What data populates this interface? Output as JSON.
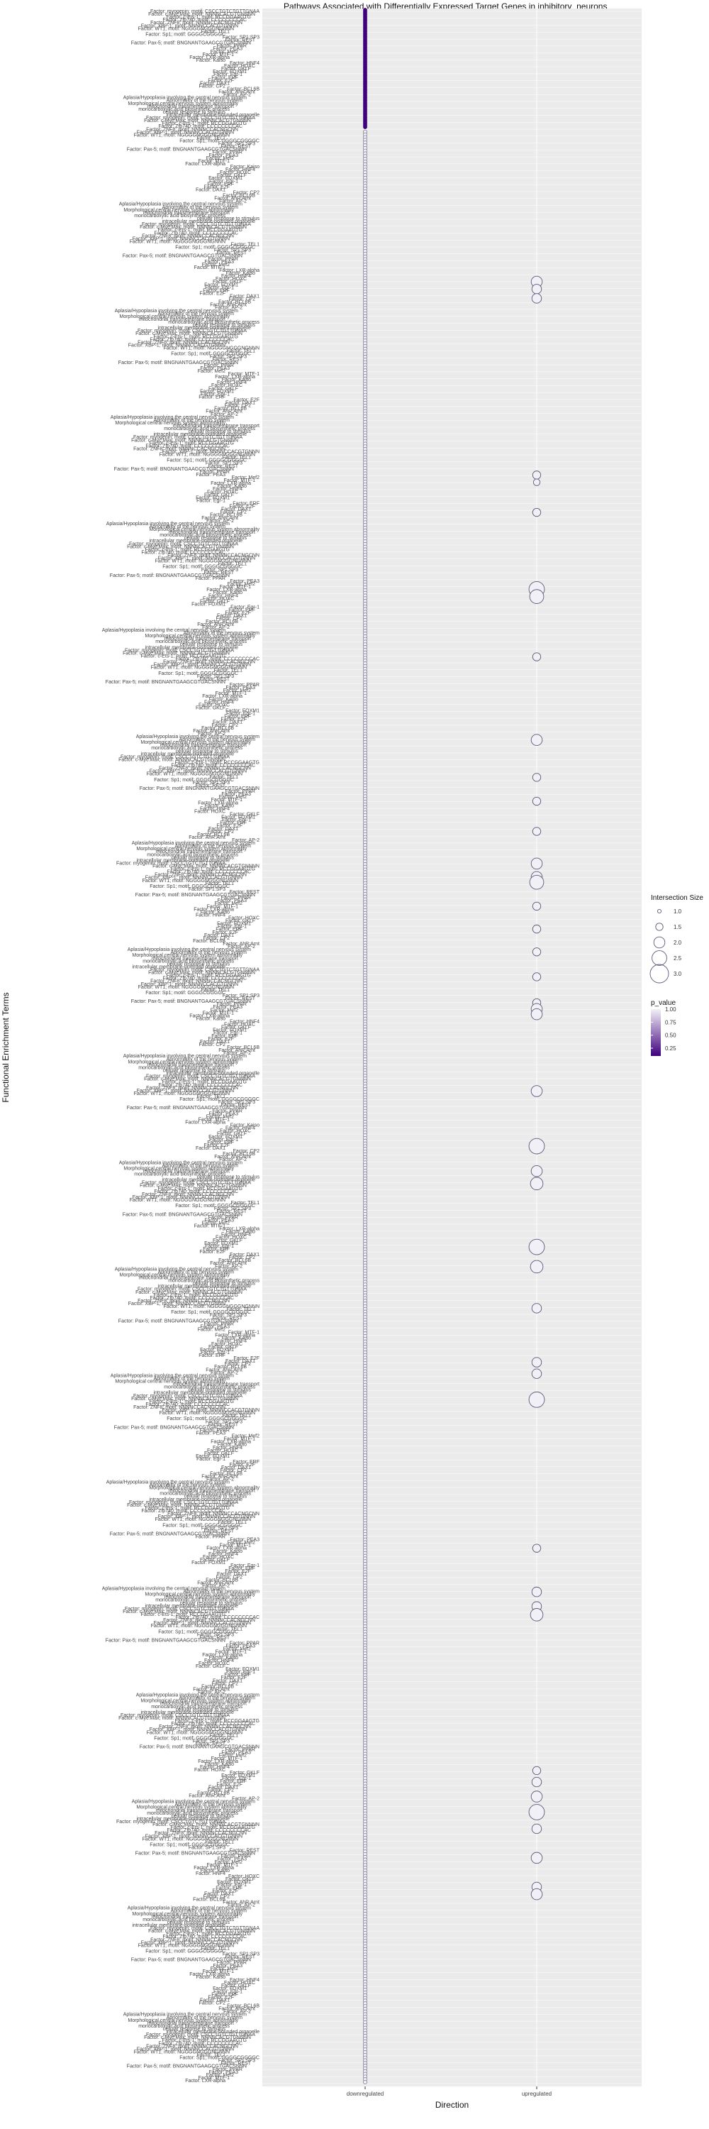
{
  "chart_data": {
    "type": "scatter",
    "title": "Pathways Associated with Differentially Expressed Target Genes in inhibitory_neurons",
    "xlabel": "Direction",
    "ylabel": "Functional Enrichment Terms",
    "x_categories": [
      "downregulated",
      "upregulated"
    ],
    "y_term_labels_sample": [
      "Factor: myogenin; motif: CSCCTGTCTGTTGNAA",
      "Factor: c-Myc:Max; motif: NNNNCACGTGNNNN",
      "Factor: c-Ets-1; motif: RCCGGAAGTG",
      "Factor: Zfp740; motif: CCCCCCCCAC",
      "Factor: ZNF8; motif: NNNNCCACNGCNN",
      "Factor: XBP-1; motif: NNNNCCACGTGNNN",
      "Factor: WT1; motif: NGGGGNGGGNGNNN",
      "Factor: TEL1",
      "Factor: Sp1; motif: GGGGCGGGGC",
      "Factor: SP1:SP3",
      "Factor: REST",
      "Factor: Pax-5; motif: BNGNANTGAAGCGTGACSNNN",
      "Factor: PPAR",
      "Factor: PEA3",
      "Factor: Mef2",
      "Factor: MTF-1",
      "Factor: LXR-alpha",
      "Factor: Kaiso",
      "Factor: HNF4",
      "Factor: HOXC",
      "Factor: GKLF",
      "Factor: FOXM1",
      "Factor: Egr-1",
      "Factor: ERF",
      "Factor: E2F",
      "Factor: DAX1",
      "Factor: CP2",
      "Factor: BCL6B",
      "Factor: AhR:Arnt",
      "Factor: AP-2",
      "Aplasia/Hypoplasia involving the central nervous system",
      "Abnormality of the nervous system",
      "Morphological central nervous system abnormality",
      "mitochondrial transmembrane transport",
      "monocarboxylic acid biosynthetic process",
      "cellular response to stimulus",
      "intracellular membrane-bounded organelle"
    ],
    "down_dense_band": {
      "start_fraction": 0.0,
      "end_fraction": 0.03,
      "p_value": 0.1,
      "size": 1.0
    },
    "down_points": {
      "count": 240,
      "size": 1.0,
      "p_value": 1.0
    },
    "up_points": [
      {
        "pos": 0.1315,
        "size": 2.0,
        "p_value": 1.0
      },
      {
        "pos": 0.135,
        "size": 1.8,
        "p_value": 1.0
      },
      {
        "pos": 0.1395,
        "size": 1.8,
        "p_value": 1.0
      },
      {
        "pos": 0.2245,
        "size": 1.6,
        "p_value": 1.0
      },
      {
        "pos": 0.228,
        "size": 1.4,
        "p_value": 1.0
      },
      {
        "pos": 0.2425,
        "size": 1.6,
        "p_value": 1.0
      },
      {
        "pos": 0.2795,
        "size": 2.6,
        "p_value": 1.0
      },
      {
        "pos": 0.283,
        "size": 2.4,
        "p_value": 1.0
      },
      {
        "pos": 0.312,
        "size": 1.6,
        "p_value": 1.0
      },
      {
        "pos": 0.352,
        "size": 2.0,
        "p_value": 1.0
      },
      {
        "pos": 0.37,
        "size": 1.6,
        "p_value": 1.0
      },
      {
        "pos": 0.3815,
        "size": 1.6,
        "p_value": 1.0
      },
      {
        "pos": 0.396,
        "size": 1.6,
        "p_value": 1.0
      },
      {
        "pos": 0.4115,
        "size": 2.0,
        "p_value": 1.0
      },
      {
        "pos": 0.418,
        "size": 2.0,
        "p_value": 1.0
      },
      {
        "pos": 0.4205,
        "size": 2.4,
        "p_value": 1.0
      },
      {
        "pos": 0.432,
        "size": 1.6,
        "p_value": 1.0
      },
      {
        "pos": 0.443,
        "size": 1.6,
        "p_value": 1.0
      },
      {
        "pos": 0.454,
        "size": 1.6,
        "p_value": 1.0
      },
      {
        "pos": 0.466,
        "size": 1.6,
        "p_value": 1.0
      },
      {
        "pos": 0.4785,
        "size": 1.6,
        "p_value": 1.0
      },
      {
        "pos": 0.4815,
        "size": 2.0,
        "p_value": 1.0
      },
      {
        "pos": 0.484,
        "size": 2.0,
        "p_value": 1.0
      },
      {
        "pos": 0.521,
        "size": 2.0,
        "p_value": 1.0
      },
      {
        "pos": 0.5475,
        "size": 2.6,
        "p_value": 1.0
      },
      {
        "pos": 0.5595,
        "size": 2.0,
        "p_value": 1.0
      },
      {
        "pos": 0.5655,
        "size": 2.2,
        "p_value": 1.0
      },
      {
        "pos": 0.596,
        "size": 2.6,
        "p_value": 1.0
      },
      {
        "pos": 0.6055,
        "size": 2.2,
        "p_value": 1.0
      },
      {
        "pos": 0.6255,
        "size": 1.8,
        "p_value": 1.0
      },
      {
        "pos": 0.6515,
        "size": 1.8,
        "p_value": 1.0
      },
      {
        "pos": 0.657,
        "size": 1.8,
        "p_value": 1.0
      },
      {
        "pos": 0.6695,
        "size": 2.6,
        "p_value": 1.0
      },
      {
        "pos": 0.741,
        "size": 1.6,
        "p_value": 1.0
      },
      {
        "pos": 0.762,
        "size": 1.8,
        "p_value": 1.0
      },
      {
        "pos": 0.769,
        "size": 1.8,
        "p_value": 1.0
      },
      {
        "pos": 0.773,
        "size": 2.2,
        "p_value": 1.0
      },
      {
        "pos": 0.848,
        "size": 1.6,
        "p_value": 1.0
      },
      {
        "pos": 0.8535,
        "size": 1.8,
        "p_value": 1.0
      },
      {
        "pos": 0.8605,
        "size": 2.0,
        "p_value": 1.0
      },
      {
        "pos": 0.868,
        "size": 2.6,
        "p_value": 1.0
      },
      {
        "pos": 0.876,
        "size": 1.8,
        "p_value": 1.0
      },
      {
        "pos": 0.89,
        "size": 2.0,
        "p_value": 1.0
      },
      {
        "pos": 0.904,
        "size": 1.8,
        "p_value": 1.0
      },
      {
        "pos": 0.9075,
        "size": 2.0,
        "p_value": 1.0
      }
    ],
    "legend": {
      "size_title": "Intersection Size",
      "size_values": [
        1.0,
        1.5,
        2.0,
        2.5,
        3.0
      ],
      "size_labels": [
        "1.0",
        "1.5",
        "2.0",
        "2.5",
        "3.0"
      ],
      "color_title": "p_value",
      "color_labels": [
        "1.00",
        "0.75",
        "0.50",
        "0.25"
      ],
      "color_values": [
        1.0,
        0.75,
        0.5,
        0.25
      ],
      "placement": "right"
    },
    "colors": {
      "panel_bg": "#ebebeb",
      "grid": "#ffffff",
      "high_p": "#f2f0f7",
      "low_p": "#3f007d",
      "point_stroke": "#5a5a78"
    },
    "grid": true
  }
}
